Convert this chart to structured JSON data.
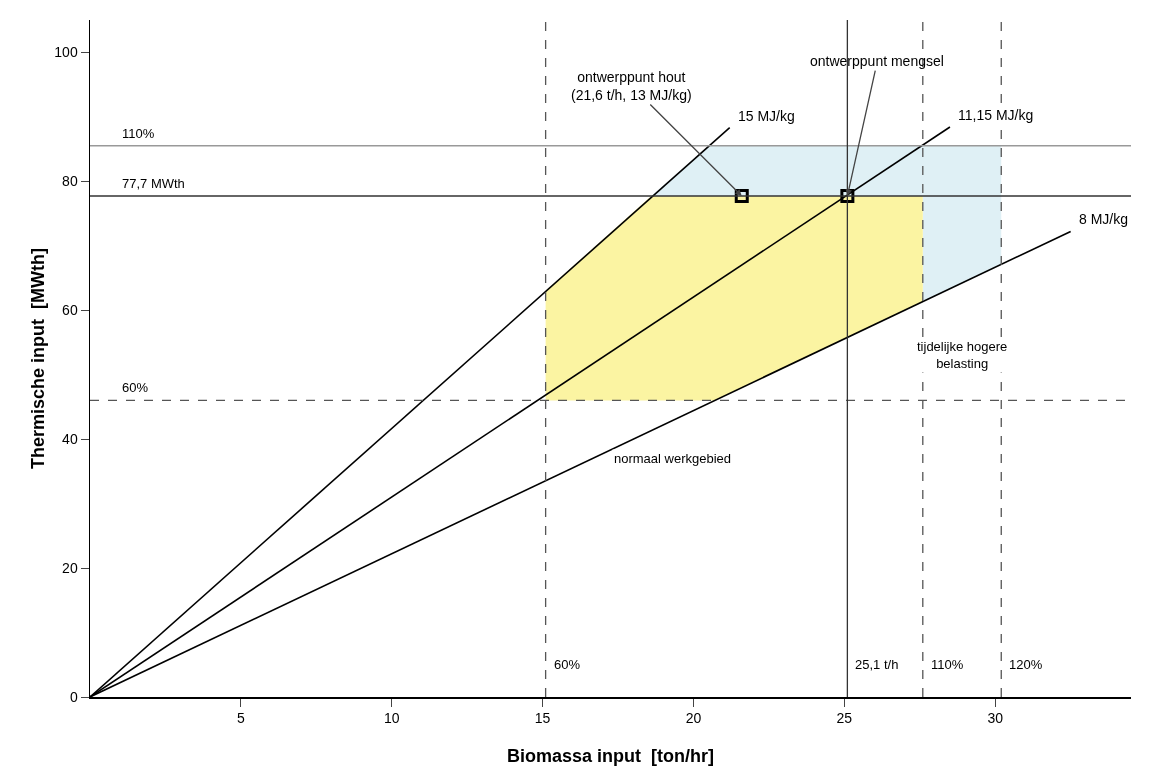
{
  "chart_data": {
    "type": "line",
    "xlabel": "Biomassa input  [ton/hr]",
    "ylabel": "Thermische input  [MWth]",
    "xlim": [
      0,
      34.5
    ],
    "ylim": [
      0,
      105
    ],
    "xticks": [
      5,
      10,
      15,
      20,
      25,
      30
    ],
    "yticks": [
      0,
      20,
      40,
      60,
      80,
      100
    ],
    "grid": false,
    "legend": false,
    "series": [
      {
        "type": "area",
        "color": "#dff0f5",
        "x": [
          18.6,
          20.5,
          30.2,
          30.2,
          27.6,
          27.6
        ],
        "values": [
          77.7,
          85.5,
          85.5,
          67,
          61.3,
          77.7
        ]
      },
      {
        "type": "area",
        "color": "#fbf4a2",
        "x": [
          15.1,
          15.1,
          18.6,
          27.6,
          27.6,
          20.7
        ],
        "values": [
          46,
          63,
          77.7,
          77.7,
          61.3,
          46
        ]
      },
      {
        "name": "15 MJ/kg",
        "color": "#000000",
        "x": [
          0,
          21.2
        ],
        "values": [
          0,
          88.3
        ]
      },
      {
        "name": "11,15 MJ/kg",
        "color": "#000000",
        "x": [
          0,
          28.5
        ],
        "values": [
          0,
          88.4
        ]
      },
      {
        "name": "8 MJ/kg",
        "color": "#000000",
        "x": [
          0,
          32.5
        ],
        "values": [
          0,
          72.2
        ]
      },
      {
        "type": "scatter",
        "marker": "square",
        "color": "#000000",
        "x": [
          21.6,
          25.1
        ],
        "values": [
          77.7,
          77.7
        ]
      }
    ],
    "ref_lines": [
      {
        "axis": "y",
        "value": 77.7,
        "label": "77,7 MWth",
        "line_style": "solid",
        "color": "#333333"
      },
      {
        "axis": "y",
        "value": 85.5,
        "line_style": "solid",
        "color": "#999999"
      },
      {
        "axis": "y",
        "value": 46,
        "line_style": "dashed",
        "color": "#555555"
      },
      {
        "axis": "x",
        "value": 15.1,
        "line_style": "dashed",
        "color": "#555555"
      },
      {
        "axis": "x",
        "value": 25.1,
        "label": "25,1 t/h",
        "line_style": "solid",
        "color": "#333333"
      },
      {
        "axis": "x",
        "value": 27.6,
        "line_style": "dashed",
        "color": "#555555"
      },
      {
        "axis": "x",
        "value": 30.2,
        "line_style": "dashed",
        "color": "#555555"
      }
    ],
    "annotations": [
      {
        "text": "ontwerppunt hout\n(21,6 t/h, 13 MJ/kg)",
        "x": 21.6,
        "y": 77.7
      },
      {
        "text": "ontwerppunt mengsel",
        "x": 25.1,
        "y": 77.7
      },
      "normaal werkgebied",
      "tijdelijke hogere\nbelasting",
      "110%",
      "60%",
      "60%",
      "110%",
      "120%"
    ]
  }
}
